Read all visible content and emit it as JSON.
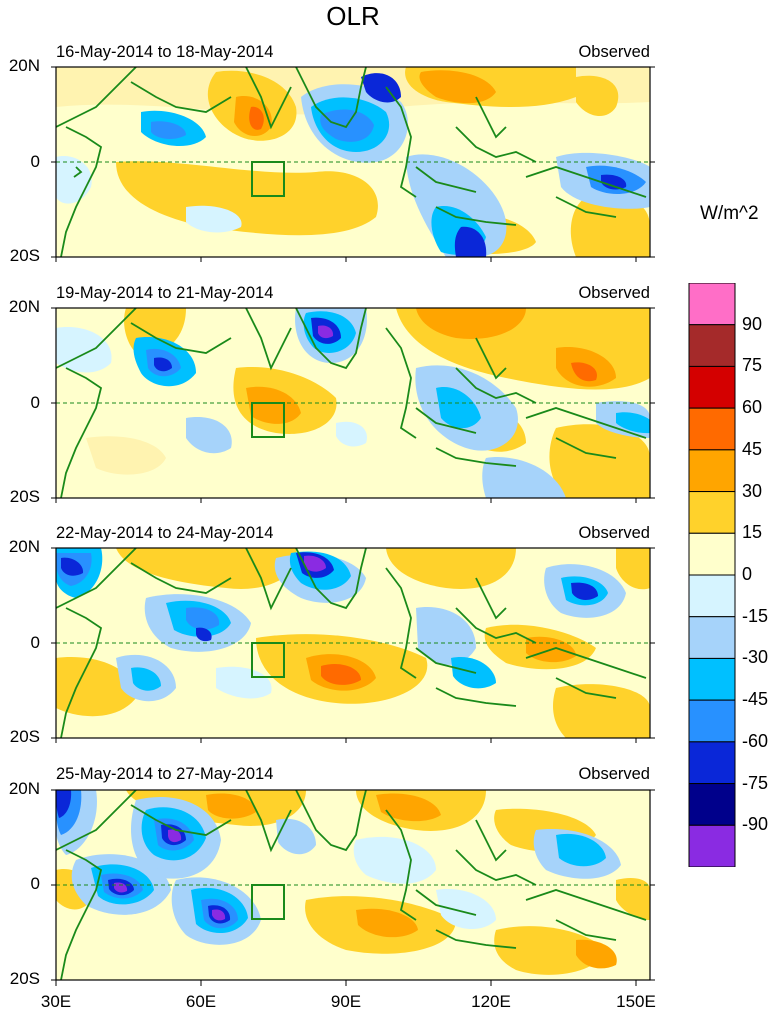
{
  "title": "OLR",
  "panels": [
    {
      "date_range": "16-May-2014 to 18-May-2014",
      "label": "Observed"
    },
    {
      "date_range": "19-May-2014 to 21-May-2014",
      "label": "Observed"
    },
    {
      "date_range": "22-May-2014 to 24-May-2014",
      "label": "Observed"
    },
    {
      "date_range": "25-May-2014 to 27-May-2014",
      "label": "Observed"
    }
  ],
  "lat_labels": [
    "20N",
    "0",
    "20S"
  ],
  "lon_labels": [
    "30E",
    "60E",
    "90E",
    "120E",
    "150E"
  ],
  "colorbar": {
    "unit": "W/m^2",
    "labels": [
      "90",
      "75",
      "60",
      "45",
      "30",
      "15",
      "0",
      "-15",
      "-30",
      "-45",
      "-60",
      "-75",
      "-90"
    ],
    "colors": [
      "#ff6ec7",
      "#a52a2a",
      "#d40000",
      "#ff6a00",
      "#ffa500",
      "#ffd22b",
      "#ffffcc",
      "#d6f4ff",
      "#a6d3fa",
      "#00c0ff",
      "#2891ff",
      "#0a27d8",
      "#00008b",
      "#8a2be2"
    ]
  },
  "colors": {
    "coast": "#1a8a1a",
    "box": "#1a8a1a",
    "equator": "#1a8a1a"
  }
}
